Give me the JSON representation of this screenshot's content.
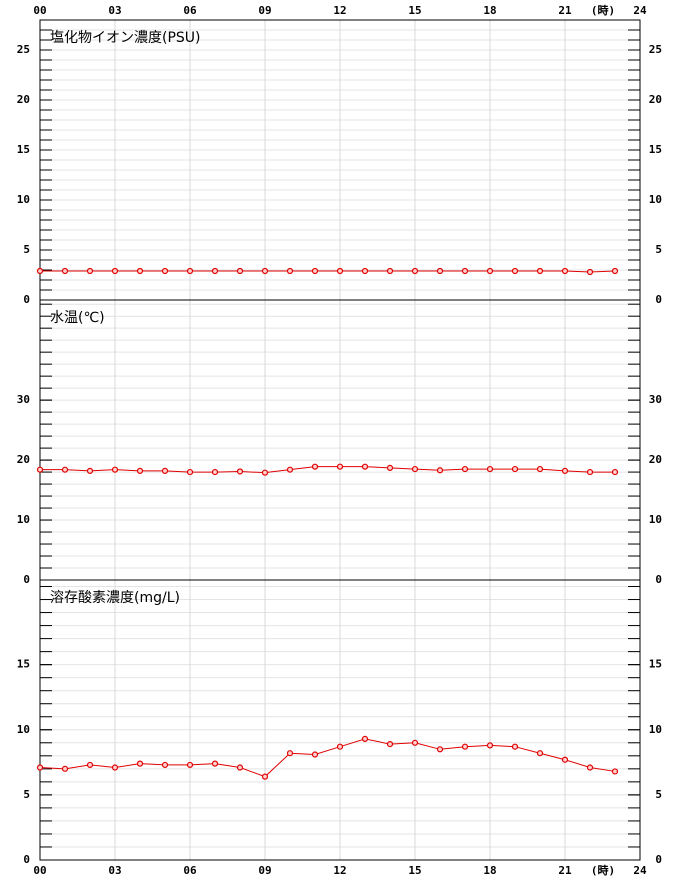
{
  "chart_data": [
    {
      "type": "line",
      "title": "塩化物イオン濃度(PSU)",
      "xlabel": "(時)",
      "xtick_side": "top",
      "x": [
        0,
        1,
        2,
        3,
        4,
        5,
        6,
        7,
        8,
        9,
        10,
        11,
        12,
        13,
        14,
        15,
        16,
        17,
        18,
        19,
        20,
        21,
        22,
        23
      ],
      "values": [
        2.9,
        2.9,
        2.9,
        2.9,
        2.9,
        2.9,
        2.9,
        2.9,
        2.9,
        2.9,
        2.9,
        2.9,
        2.9,
        2.9,
        2.9,
        2.9,
        2.9,
        2.9,
        2.9,
        2.9,
        2.9,
        2.9,
        2.8,
        2.9
      ],
      "color": "#e00000",
      "xlim": [
        0,
        24
      ],
      "xticks": [
        {
          "value": 0,
          "label": "00"
        },
        {
          "value": 3,
          "label": "03"
        },
        {
          "value": 6,
          "label": "06"
        },
        {
          "value": 9,
          "label": "09"
        },
        12,
        15,
        18,
        21,
        24
      ],
      "ylim": [
        0,
        28
      ],
      "yticks": [
        0,
        5,
        10,
        15,
        20,
        25
      ],
      "grid": true
    },
    {
      "type": "line",
      "title": "水温(℃)",
      "x": [
        0,
        1,
        2,
        3,
        4,
        5,
        6,
        7,
        8,
        9,
        10,
        11,
        12,
        13,
        14,
        15,
        16,
        17,
        18,
        19,
        20,
        21,
        22,
        23
      ],
      "values": [
        18.4,
        18.4,
        18.2,
        18.4,
        18.2,
        18.2,
        18.0,
        18.0,
        18.1,
        17.9,
        18.4,
        18.9,
        18.9,
        18.9,
        18.7,
        18.5,
        18.3,
        18.5,
        18.5,
        18.5,
        18.5,
        18.2,
        18.0,
        18.0
      ],
      "color": "#e00000",
      "xlim": [
        0,
        24
      ],
      "xticks": [
        0,
        3,
        6,
        9,
        12,
        15,
        18,
        21,
        24
      ],
      "ylim": [
        0,
        46.7
      ],
      "yticks": [
        0,
        10,
        20,
        30
      ],
      "grid": true
    },
    {
      "type": "line",
      "title": "溶存酸素濃度(mg/L)",
      "xlabel": "(時)",
      "xtick_side": "bottom",
      "x": [
        0,
        1,
        2,
        3,
        4,
        5,
        6,
        7,
        8,
        9,
        10,
        11,
        12,
        13,
        14,
        15,
        16,
        17,
        18,
        19,
        20,
        21,
        22,
        23
      ],
      "values": [
        7.1,
        7.0,
        7.3,
        7.1,
        7.4,
        7.3,
        7.3,
        7.4,
        7.1,
        6.4,
        8.2,
        8.1,
        8.7,
        9.3,
        8.9,
        9.0,
        8.5,
        8.7,
        8.8,
        8.7,
        8.2,
        7.7,
        7.1,
        6.8
      ],
      "color": "#e00000",
      "xlim": [
        0,
        24
      ],
      "xticks": [
        {
          "value": 0,
          "label": "00"
        },
        {
          "value": 3,
          "label": "03"
        },
        {
          "value": 6,
          "label": "06"
        },
        {
          "value": 9,
          "label": "09"
        },
        12,
        15,
        18,
        21,
        24
      ],
      "ylim": [
        0,
        21.5
      ],
      "yticks": [
        0,
        5,
        10,
        15
      ],
      "grid": true
    }
  ]
}
